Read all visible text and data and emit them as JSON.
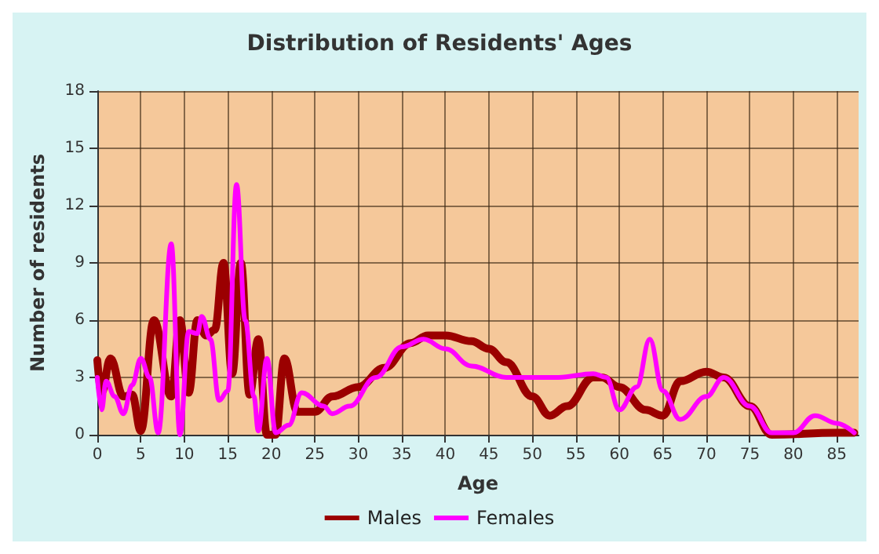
{
  "chart_data": {
    "type": "line",
    "title": "Distribution of Residents' Ages",
    "xlabel": "Age",
    "ylabel": "Number of residents",
    "xlim": [
      0,
      87.5
    ],
    "xticks": [
      0,
      5,
      10,
      15,
      20,
      25,
      30,
      35,
      40,
      45,
      50,
      55,
      60,
      65,
      70,
      75,
      80,
      85
    ],
    "ylim": [
      0,
      18
    ],
    "yticks": [
      0,
      3,
      6,
      9,
      12,
      15,
      18
    ],
    "grid": true,
    "legend": "bottom",
    "marker": "none",
    "line_style": "solid",
    "series": [
      {
        "name": "Males",
        "color": "#9b0000",
        "x": [
          0,
          0.5,
          1.5,
          3,
          4,
          5,
          6.5,
          8.5,
          9.5,
          10.5,
          11.5,
          12.5,
          13.5,
          14.5,
          15.5,
          16.5,
          17.5,
          18.5,
          19.5,
          20.5,
          21.5,
          23,
          25,
          27,
          30,
          33,
          36,
          38,
          40,
          43,
          45,
          47,
          50,
          52,
          54,
          57,
          58,
          60,
          63,
          65,
          67,
          70,
          72,
          75,
          77.5,
          85,
          87
        ],
        "values": [
          3.9,
          2.2,
          4,
          2,
          2.1,
          0.2,
          6,
          2,
          6,
          2.2,
          6,
          5.2,
          5.5,
          9,
          3.2,
          9,
          2.1,
          5,
          0,
          0,
          4,
          1.2,
          1.2,
          2,
          2.5,
          3.5,
          4.8,
          5.2,
          5.2,
          4.9,
          4.5,
          3.8,
          2,
          1,
          1.5,
          3,
          3,
          2.5,
          1.3,
          1,
          2.8,
          3.3,
          3,
          1.5,
          0,
          0.1,
          0.1
        ]
      },
      {
        "name": "Females",
        "color": "#ff00ff",
        "x": [
          0,
          0.5,
          1,
          2,
          3,
          4,
          5,
          6,
          7,
          8.5,
          9.5,
          10.5,
          11.5,
          12,
          13,
          14,
          15,
          16,
          17,
          18,
          18.5,
          19.5,
          20.5,
          22,
          23.5,
          26,
          27,
          29,
          32,
          35,
          37.5,
          40,
          43,
          47,
          50,
          53,
          57,
          58.5,
          60,
          62,
          63.5,
          65,
          67,
          70,
          72,
          75,
          77.5,
          80,
          82.5,
          85,
          87
        ],
        "values": [
          3,
          1.3,
          2.8,
          2,
          1.1,
          2.6,
          4,
          3,
          0.1,
          10,
          0,
          5.4,
          5.3,
          6.2,
          5,
          1.8,
          2.3,
          13.1,
          6,
          2,
          0.2,
          4,
          0.1,
          0.5,
          2.2,
          1.5,
          1.1,
          1.5,
          3,
          4.6,
          5,
          4.5,
          3.6,
          3,
          3,
          3,
          3.2,
          3,
          1.3,
          2.5,
          5,
          2.3,
          0.8,
          2,
          3,
          1.5,
          0.1,
          0.1,
          1,
          0.6,
          0.1
        ]
      }
    ]
  }
}
